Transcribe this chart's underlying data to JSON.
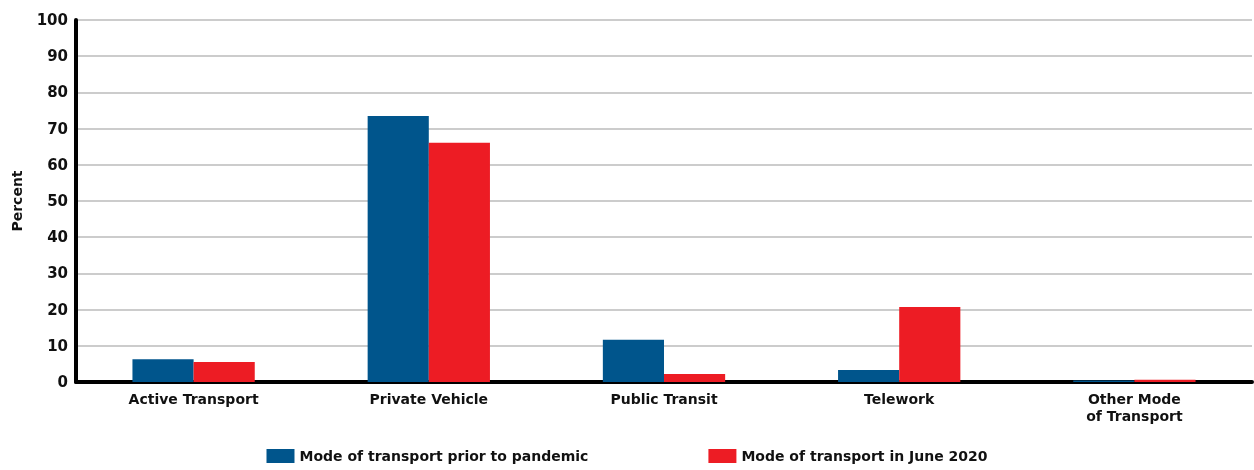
{
  "chart_data": {
    "type": "bar",
    "ylabel": "Percent",
    "categories": [
      "Active Transport",
      "Private Vehicle",
      "Public Transit",
      "Telework",
      "Other Mode\nof Transport"
    ],
    "series": [
      {
        "name": "Mode of transport prior to pandemic",
        "color": "#00558c",
        "values": [
          6.3,
          73.5,
          11.7,
          3.3,
          0.4
        ]
      },
      {
        "name": "Mode of transport in June 2020",
        "color": "#ed1c24",
        "values": [
          5.5,
          66.1,
          2.2,
          20.7,
          0.6
        ]
      }
    ],
    "ylim": [
      0,
      100
    ],
    "yticks": [
      0,
      10,
      20,
      30,
      40,
      50,
      60,
      70,
      80,
      90,
      100
    ],
    "grid": "y",
    "legend": "bottom"
  }
}
